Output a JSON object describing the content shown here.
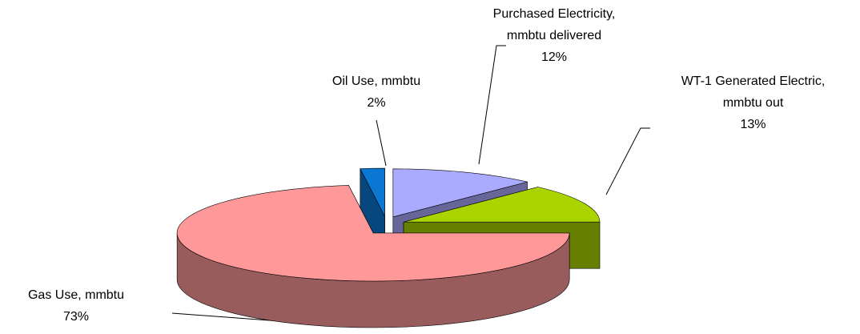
{
  "chart_data": {
    "type": "pie3d",
    "categories": [
      "Purchased Electricity, mmbtu delivered",
      "WT-1 Generated Electric, mmbtu out",
      "Gas Use, mmbtu",
      "Oil Use, mmbtu"
    ],
    "values": [
      12,
      13,
      73,
      2
    ],
    "value_labels": [
      "12%",
      "13%",
      "73%",
      "2%"
    ],
    "colors": [
      "#aaaaff",
      "#aad400",
      "#ff9999",
      "#0a78d2"
    ]
  }
}
